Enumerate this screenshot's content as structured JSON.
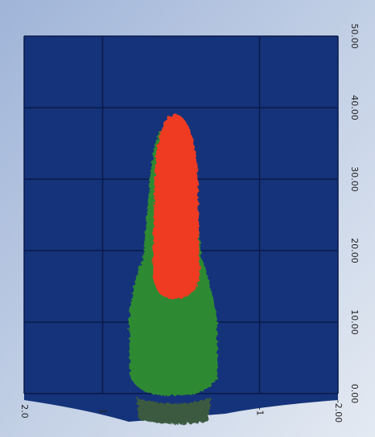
{
  "chart_data": {
    "type": "colormap",
    "xlim": [
      2,
      -2
    ],
    "xticks": [
      {
        "value": 2,
        "label": "2.0"
      },
      {
        "value": 1,
        "label": "1"
      },
      {
        "value": -1,
        "label": "-1"
      },
      {
        "value": -2,
        "label": "-2.00"
      }
    ],
    "ylim": [
      0,
      50
    ],
    "yticks": [
      {
        "value": 0,
        "label": "0.00"
      },
      {
        "value": 10,
        "label": "10.00"
      },
      {
        "value": 20,
        "label": "20.00"
      },
      {
        "value": 30,
        "label": "30.00"
      },
      {
        "value": 40,
        "label": "40.00"
      },
      {
        "value": 50,
        "label": "50.00"
      }
    ],
    "grid": true
  }
}
